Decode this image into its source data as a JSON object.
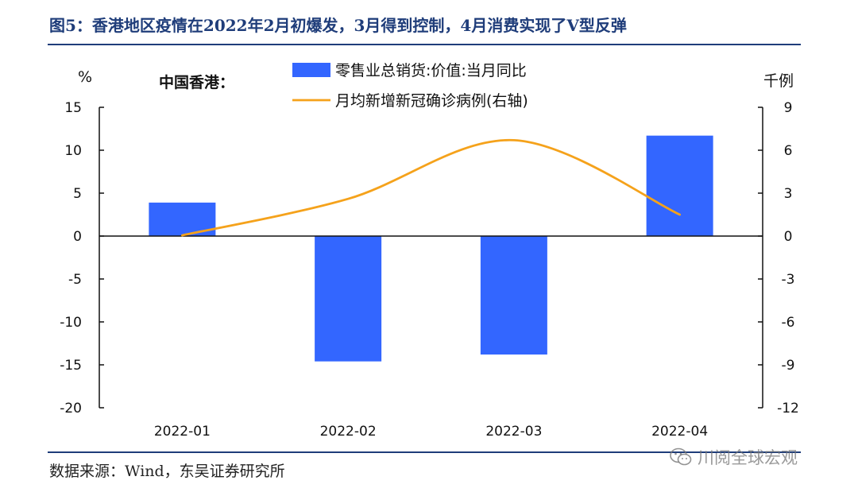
{
  "figure": {
    "title": "图5：香港地区疫情在2022年2月初爆发，3月得到控制，4月消费实现了V型反弹",
    "source": "数据来源：Wind，东吴证券研究所",
    "watermark": "川阅全球宏观",
    "watermark_icon": "wechat-icon"
  },
  "chart_data": {
    "type": "bar",
    "region_label": "中国香港：",
    "categories": [
      "2022-01",
      "2022-02",
      "2022-03",
      "2022-04"
    ],
    "left_axis": {
      "unit": "%",
      "range": [
        -20,
        15
      ],
      "ticks": [
        15,
        10,
        5,
        0,
        -5,
        -10,
        -15,
        -20
      ]
    },
    "right_axis": {
      "unit": "千例",
      "range": [
        -12,
        9
      ],
      "ticks": [
        9,
        6,
        3,
        0,
        -3,
        -6,
        -9,
        -12
      ]
    },
    "series": [
      {
        "name": "零售业总销货:价值:当月同比",
        "type": "bar",
        "axis": "left",
        "color": "#3366ff",
        "values": [
          3.9,
          -14.6,
          -13.8,
          11.7
        ]
      },
      {
        "name": "月均新增新冠确诊病例(右轴)",
        "type": "line",
        "axis": "right",
        "color": "#f5a21b",
        "values": [
          0.05,
          2.6,
          6.7,
          1.5
        ]
      }
    ],
    "legend_position": "top-center",
    "grid": false
  }
}
